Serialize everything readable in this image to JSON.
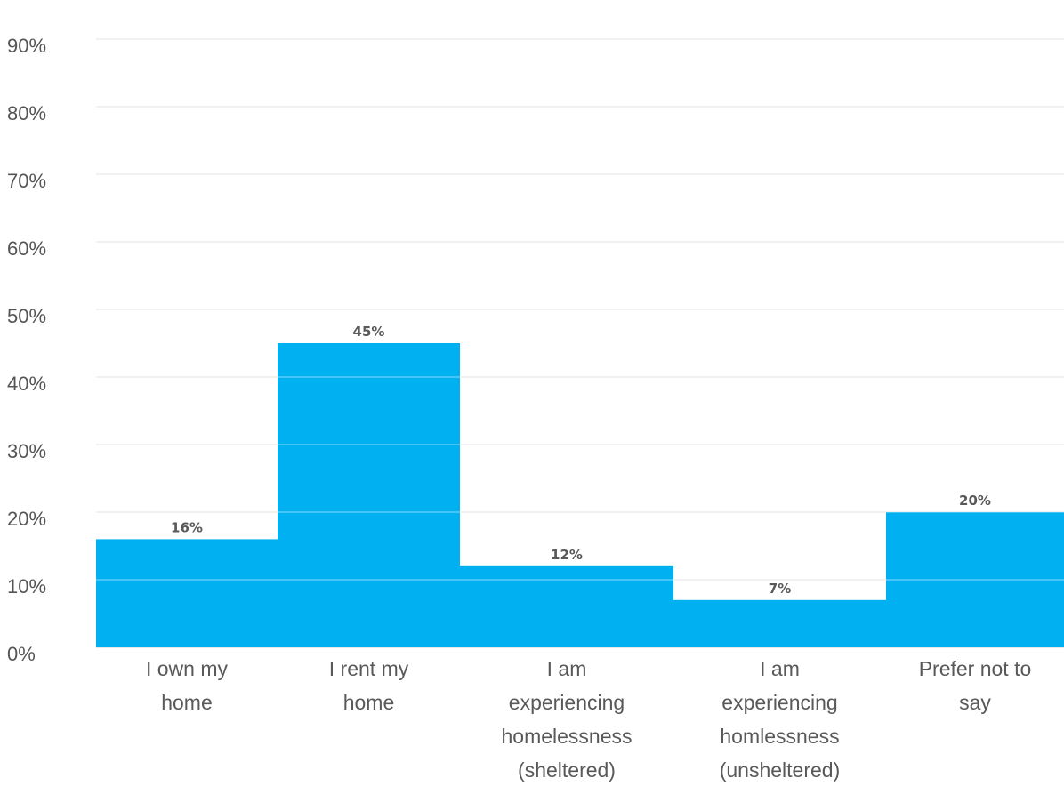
{
  "chart_data": {
    "type": "bar",
    "categories": [
      [
        "I own my",
        "home"
      ],
      [
        "I rent my",
        "home"
      ],
      [
        "I am",
        "experiencing",
        "homelessness",
        "(sheltered)"
      ],
      [
        "I am",
        "experiencing",
        "homlessness",
        "(unsheltered)"
      ],
      [
        "Prefer not to",
        "say"
      ]
    ],
    "values": [
      16,
      45,
      12,
      7,
      20
    ],
    "data_labels": [
      "16%",
      "45%",
      "12%",
      "7%",
      "20%"
    ],
    "yticks": [
      "0%",
      "10%",
      "20%",
      "30%",
      "40%",
      "50%",
      "60%",
      "70%",
      "80%",
      "90%"
    ],
    "ylim": [
      0,
      90
    ],
    "grid": true,
    "bar_color": "#00B0F0",
    "grid_color": "#d9d9d9",
    "title": "",
    "xlabel": "",
    "ylabel": ""
  }
}
